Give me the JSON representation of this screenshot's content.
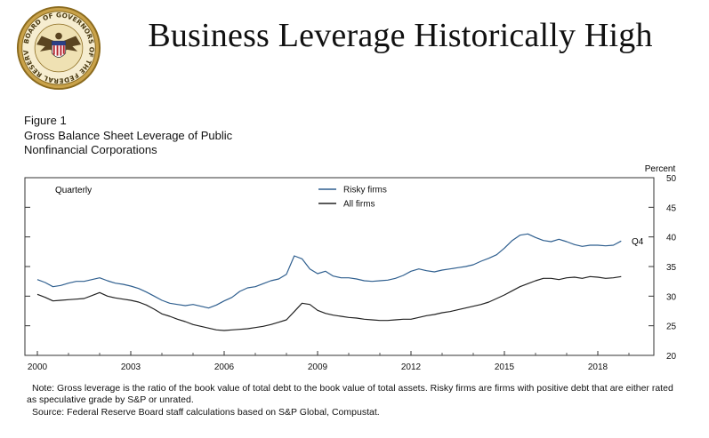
{
  "slide": {
    "title": "Business Leverage Historically High",
    "seal_text": "BOARD OF GOVERNORS OF THE FEDERAL RESERVE SYSTEM"
  },
  "figure": {
    "label": "Figure 1",
    "subtitle_line1": "Gross Balance Sheet Leverage of Public",
    "subtitle_line2": "Nonfinancial Corporations",
    "frequency": "Quarterly",
    "unit": "Percent",
    "end_label": "Q4",
    "note": "Note: Gross leverage is the ratio of the book value of total debt to the book value of total assets. Risky firms are firms with positive debt that are either rated as speculative grade by S&P or unrated.",
    "source": "Source: Federal Reserve Board staff calculations based on S&P Global, Compustat."
  },
  "colors": {
    "risky": "#2f5f8f",
    "all": "#222222",
    "axis": "#333333"
  },
  "chart_data": {
    "type": "line",
    "title": "Gross Balance Sheet Leverage of Public Nonfinancial Corporations",
    "ylabel": "Percent",
    "xlabel": "",
    "ylim": [
      20,
      50
    ],
    "xlim": [
      1999.6,
      2019.8
    ],
    "x_ticks": [
      "2000",
      "2003",
      "2006",
      "2009",
      "2012",
      "2015",
      "2018"
    ],
    "y_ticks": [
      "25",
      "30",
      "35",
      "40",
      "45",
      "50"
    ],
    "y_ticks_right_only": true,
    "legend": [
      "Risky firms",
      "All firms"
    ],
    "legend_position": "top-center",
    "series": [
      {
        "name": "Risky firms",
        "x": [
          "2000Q1",
          "2000Q2",
          "2000Q3",
          "2000Q4",
          "2001Q1",
          "2001Q2",
          "2001Q3",
          "2001Q4",
          "2002Q1",
          "2002Q2",
          "2002Q3",
          "2002Q4",
          "2003Q1",
          "2003Q2",
          "2003Q3",
          "2003Q4",
          "2004Q1",
          "2004Q2",
          "2004Q3",
          "2004Q4",
          "2005Q1",
          "2005Q2",
          "2005Q3",
          "2005Q4",
          "2006Q1",
          "2006Q2",
          "2006Q3",
          "2006Q4",
          "2007Q1",
          "2007Q2",
          "2007Q3",
          "2007Q4",
          "2008Q1",
          "2008Q2",
          "2008Q3",
          "2008Q4",
          "2009Q1",
          "2009Q2",
          "2009Q3",
          "2009Q4",
          "2010Q1",
          "2010Q2",
          "2010Q3",
          "2010Q4",
          "2011Q1",
          "2011Q2",
          "2011Q3",
          "2011Q4",
          "2012Q1",
          "2012Q2",
          "2012Q3",
          "2012Q4",
          "2013Q1",
          "2013Q2",
          "2013Q3",
          "2013Q4",
          "2014Q1",
          "2014Q2",
          "2014Q3",
          "2014Q4",
          "2015Q1",
          "2015Q2",
          "2015Q3",
          "2015Q4",
          "2016Q1",
          "2016Q2",
          "2016Q3",
          "2016Q4",
          "2017Q1",
          "2017Q2",
          "2017Q3",
          "2017Q4",
          "2018Q1",
          "2018Q2",
          "2018Q3",
          "2018Q4"
        ],
        "values": [
          32.8,
          32.3,
          31.6,
          31.8,
          32.2,
          32.5,
          32.5,
          32.8,
          33.1,
          32.6,
          32.2,
          32.0,
          31.7,
          31.3,
          30.7,
          30.0,
          29.3,
          28.8,
          28.6,
          28.4,
          28.6,
          28.3,
          28.0,
          28.5,
          29.2,
          29.8,
          30.8,
          31.4,
          31.6,
          32.1,
          32.6,
          32.9,
          33.7,
          36.8,
          36.3,
          34.6,
          33.8,
          34.2,
          33.4,
          33.1,
          33.1,
          32.9,
          32.6,
          32.5,
          32.6,
          32.7,
          33.0,
          33.5,
          34.2,
          34.6,
          34.3,
          34.1,
          34.4,
          34.6,
          34.8,
          35.0,
          35.3,
          35.9,
          36.4,
          37.0,
          38.1,
          39.4,
          40.3,
          40.5,
          39.9,
          39.4,
          39.2,
          39.6,
          39.2,
          38.7,
          38.4,
          38.6,
          38.6,
          38.5,
          38.6,
          39.3
        ]
      },
      {
        "name": "All firms",
        "x": [
          "2000Q1",
          "2000Q2",
          "2000Q3",
          "2000Q4",
          "2001Q1",
          "2001Q2",
          "2001Q3",
          "2001Q4",
          "2002Q1",
          "2002Q2",
          "2002Q3",
          "2002Q4",
          "2003Q1",
          "2003Q2",
          "2003Q3",
          "2003Q4",
          "2004Q1",
          "2004Q2",
          "2004Q3",
          "2004Q4",
          "2005Q1",
          "2005Q2",
          "2005Q3",
          "2005Q4",
          "2006Q1",
          "2006Q2",
          "2006Q3",
          "2006Q4",
          "2007Q1",
          "2007Q2",
          "2007Q3",
          "2007Q4",
          "2008Q1",
          "2008Q2",
          "2008Q3",
          "2008Q4",
          "2009Q1",
          "2009Q2",
          "2009Q3",
          "2009Q4",
          "2010Q1",
          "2010Q2",
          "2010Q3",
          "2010Q4",
          "2011Q1",
          "2011Q2",
          "2011Q3",
          "2011Q4",
          "2012Q1",
          "2012Q2",
          "2012Q3",
          "2012Q4",
          "2013Q1",
          "2013Q2",
          "2013Q3",
          "2013Q4",
          "2014Q1",
          "2014Q2",
          "2014Q3",
          "2014Q4",
          "2015Q1",
          "2015Q2",
          "2015Q3",
          "2015Q4",
          "2016Q1",
          "2016Q2",
          "2016Q3",
          "2016Q4",
          "2017Q1",
          "2017Q2",
          "2017Q3",
          "2017Q4",
          "2018Q1",
          "2018Q2",
          "2018Q3",
          "2018Q4"
        ],
        "values": [
          30.3,
          29.8,
          29.2,
          29.3,
          29.4,
          29.5,
          29.6,
          30.1,
          30.6,
          30.0,
          29.7,
          29.5,
          29.3,
          29.0,
          28.5,
          27.8,
          27.0,
          26.6,
          26.1,
          25.7,
          25.2,
          24.9,
          24.6,
          24.3,
          24.2,
          24.3,
          24.4,
          24.5,
          24.7,
          24.9,
          25.2,
          25.6,
          26.0,
          27.4,
          28.8,
          28.6,
          27.6,
          27.1,
          26.8,
          26.6,
          26.4,
          26.3,
          26.1,
          26.0,
          25.9,
          25.9,
          26.0,
          26.1,
          26.1,
          26.4,
          26.7,
          26.9,
          27.2,
          27.4,
          27.7,
          28.0,
          28.3,
          28.6,
          29.0,
          29.6,
          30.2,
          30.9,
          31.6,
          32.1,
          32.6,
          33.0,
          33.0,
          32.8,
          33.1,
          33.2,
          33.0,
          33.3,
          33.2,
          33.0,
          33.1,
          33.3
        ]
      }
    ]
  }
}
